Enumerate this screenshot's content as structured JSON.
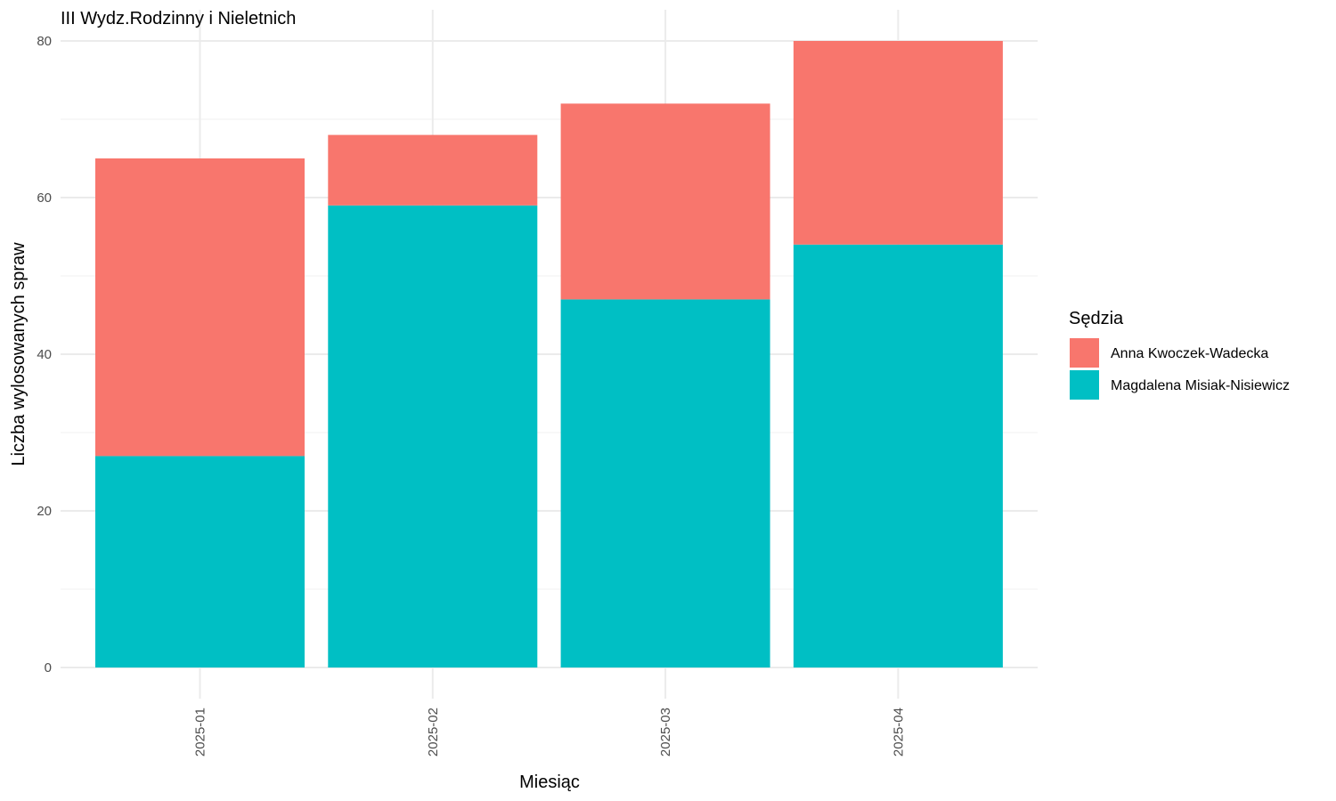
{
  "chart_data": {
    "type": "bar",
    "stacked": true,
    "title": "III Wydz.Rodzinny i Nieletnich",
    "xlabel": "Miesiąc",
    "ylabel": "Liczba wylosowanych spraw",
    "categories": [
      "2025-01",
      "2025-02",
      "2025-03",
      "2025-04"
    ],
    "series": [
      {
        "name": "Magdalena Misiak-Nisiewicz",
        "color": "#00BFC4",
        "values": [
          27,
          59,
          47,
          54
        ]
      },
      {
        "name": "Anna Kwoczek-Wadecka",
        "color": "#F8766D",
        "values": [
          38,
          9,
          25,
          26
        ]
      }
    ],
    "ylim": [
      0,
      80
    ],
    "yticks": [
      0,
      20,
      40,
      60,
      80
    ],
    "grid": true,
    "legend": {
      "title": "Sędzia",
      "position": "right",
      "order": [
        "Anna Kwoczek-Wadecka",
        "Magdalena Misiak-Nisiewicz"
      ]
    }
  }
}
